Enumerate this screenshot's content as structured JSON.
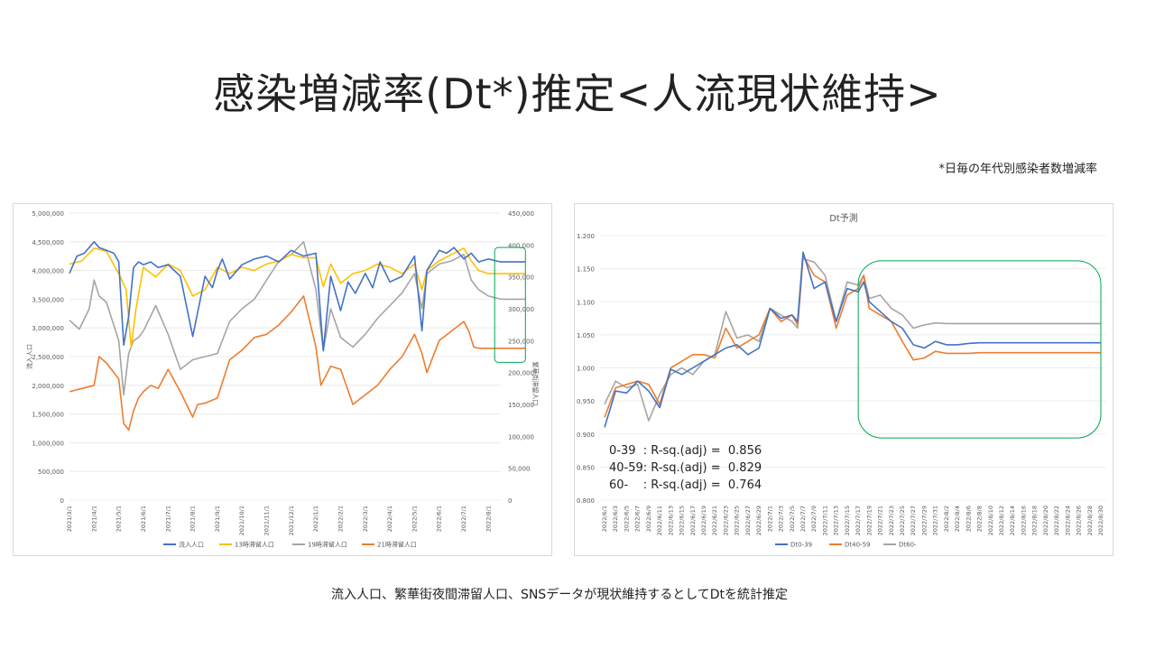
{
  "title": "感染増減率(Dt*)推定<人流現状維持>",
  "note": "*日毎の年代別感染者数増減率",
  "caption": "流入人口、繁華街夜間滞留人口、SNSデータが現状維持するとしてDtを統計推定",
  "colors": {
    "blue": "#4472c4",
    "orange": "#ed7d31",
    "gray": "#a5a5a5",
    "yellow": "#ffc000",
    "green": "#00a651"
  },
  "chart_data": [
    {
      "type": "line",
      "title": "",
      "ylabel": "流入人口",
      "y2label": "繁華街滞留人口",
      "ylim": [
        0,
        5000000
      ],
      "y2lim": [
        0,
        450000
      ],
      "yticks": [
        "0",
        "500,000",
        "1,000,000",
        "1,500,000",
        "2,000,000",
        "2,500,000",
        "3,000,000",
        "3,500,000",
        "4,000,000",
        "4,500,000",
        "5,000,000"
      ],
      "y2ticks": [
        "0",
        "50,000",
        "100,000",
        "150,000",
        "200,000",
        "250,000",
        "300,000",
        "350,000",
        "400,000",
        "450,000"
      ],
      "xticks": [
        "2021/3/1",
        "2021/4/1",
        "2021/5/1",
        "2021/6/1",
        "2021/7/1",
        "2021/8/1",
        "2021/9/1",
        "2021/10/1",
        "2021/11/1",
        "2021/12/1",
        "2022/1/1",
        "2022/2/1",
        "2022/3/1",
        "2022/4/1",
        "2022/5/1",
        "2022/6/1",
        "2022/7/1",
        "2022/8/1"
      ],
      "series": [
        {
          "name": "流入人口",
          "axis": "left",
          "x": [
            0,
            0.3,
            0.6,
            1,
            1.2,
            1.5,
            1.8,
            2,
            2.2,
            2.4,
            2.6,
            2.7,
            2.8,
            3,
            3.3,
            3.6,
            4,
            4.5,
            5,
            5.5,
            5.8,
            6,
            6.2,
            6.5,
            7,
            7.5,
            8,
            8.5,
            9,
            9.5,
            10,
            10.3,
            10.6,
            11,
            11.3,
            11.6,
            12,
            12.3,
            12.6,
            13,
            13.5,
            14,
            14.3,
            14.5,
            15,
            15.3,
            15.6,
            16,
            16.3,
            16.6,
            17,
            17.5,
            18,
            18.5
          ],
          "values": [
            3950000,
            4250000,
            4300000,
            4500000,
            4400000,
            4350000,
            4300000,
            4150000,
            2700000,
            3200000,
            4050000,
            4100000,
            4150000,
            4100000,
            4150000,
            4050000,
            4100000,
            3900000,
            2850000,
            3900000,
            3700000,
            4000000,
            4200000,
            3850000,
            4100000,
            4200000,
            4250000,
            4150000,
            4350000,
            4250000,
            4300000,
            2600000,
            3900000,
            3300000,
            3800000,
            3600000,
            3950000,
            3700000,
            4150000,
            3800000,
            3900000,
            4250000,
            2950000,
            4000000,
            4350000,
            4300000,
            4400000,
            4200000,
            4300000,
            4150000,
            4200000,
            4150000,
            4150000,
            4150000
          ]
        },
        {
          "name": "13時滞留人口",
          "axis": "right",
          "x": [
            0,
            0.5,
            1,
            1.5,
            2,
            2.3,
            2.5,
            2.7,
            3,
            3.5,
            4,
            4.5,
            5,
            5.5,
            6,
            6.5,
            7,
            7.5,
            8,
            8.5,
            9,
            9.5,
            10,
            10.3,
            10.6,
            11,
            11.5,
            12,
            12.5,
            13,
            13.5,
            14,
            14.3,
            14.5,
            15,
            15.5,
            16,
            16.3,
            16.6,
            17,
            17.5,
            18,
            18.5
          ],
          "values": [
            370000,
            375000,
            395000,
            390000,
            355000,
            330000,
            240000,
            300000,
            365000,
            350000,
            370000,
            360000,
            320000,
            330000,
            365000,
            355000,
            365000,
            360000,
            370000,
            375000,
            385000,
            380000,
            380000,
            335000,
            370000,
            340000,
            355000,
            360000,
            370000,
            365000,
            355000,
            370000,
            330000,
            360000,
            375000,
            385000,
            395000,
            375000,
            360000,
            355000,
            355000,
            355000,
            355000
          ]
        },
        {
          "name": "19時滞留人口",
          "axis": "right",
          "x": [
            0,
            0.4,
            0.8,
            1,
            1.2,
            1.5,
            2,
            2.2,
            2.4,
            2.6,
            2.8,
            3,
            3.5,
            4,
            4.5,
            5,
            5.5,
            6,
            6.5,
            7,
            7.5,
            8,
            8.5,
            9,
            9.5,
            10,
            10.3,
            10.6,
            11,
            11.5,
            12,
            12.5,
            13,
            13.5,
            14,
            14.3,
            14.5,
            15,
            15.5,
            16,
            16.3,
            16.6,
            17,
            17.5,
            18,
            18.5
          ],
          "values": [
            282000,
            268000,
            300000,
            345000,
            320000,
            310000,
            250000,
            165000,
            230000,
            250000,
            255000,
            265000,
            305000,
            260000,
            205000,
            220000,
            225000,
            230000,
            280000,
            300000,
            315000,
            345000,
            375000,
            385000,
            405000,
            330000,
            235000,
            300000,
            255000,
            240000,
            260000,
            285000,
            305000,
            325000,
            355000,
            300000,
            355000,
            370000,
            375000,
            385000,
            345000,
            330000,
            320000,
            315000,
            315000,
            315000
          ]
        },
        {
          "name": "21時滞留人口",
          "axis": "right",
          "x": [
            0,
            0.5,
            1,
            1.2,
            1.5,
            2,
            2.2,
            2.4,
            2.6,
            2.8,
            3,
            3.3,
            3.6,
            4,
            4.5,
            5,
            5.2,
            5.5,
            6,
            6.5,
            7,
            7.5,
            8,
            8.5,
            9,
            9.5,
            10,
            10.2,
            10.4,
            10.6,
            11,
            11.5,
            12,
            12.5,
            13,
            13.5,
            14,
            14.3,
            14.5,
            15,
            15.5,
            16,
            16.2,
            16.4,
            16.6,
            17,
            17.5,
            18,
            18.5
          ],
          "values": [
            170000,
            175000,
            180000,
            225000,
            215000,
            190000,
            120000,
            110000,
            140000,
            160000,
            170000,
            180000,
            175000,
            205000,
            170000,
            130000,
            150000,
            152000,
            160000,
            220000,
            235000,
            255000,
            260000,
            275000,
            295000,
            320000,
            240000,
            180000,
            195000,
            210000,
            205000,
            150000,
            165000,
            180000,
            205000,
            225000,
            260000,
            230000,
            200000,
            250000,
            265000,
            280000,
            265000,
            240000,
            238000,
            238000,
            238000,
            238000,
            238000
          ]
        }
      ]
    },
    {
      "type": "line",
      "title": "Dt予測",
      "ylim": [
        0.8,
        1.2
      ],
      "yticks": [
        "0.800",
        "0.850",
        "0.900",
        "0.950",
        "1.000",
        "1.050",
        "1.100",
        "1.150",
        "1.200"
      ],
      "xticks": [
        "2022/6/1",
        "2022/6/3",
        "2022/6/5",
        "2022/6/7",
        "2022/6/9",
        "2022/6/11",
        "2022/6/13",
        "2022/6/15",
        "2022/6/17",
        "2022/6/19",
        "2022/6/21",
        "2022/6/23",
        "2022/6/25",
        "2022/6/27",
        "2022/6/29",
        "2022/7/1",
        "2022/7/3",
        "2022/7/5",
        "2022/7/7",
        "2022/7/9",
        "2022/7/11",
        "2022/7/13",
        "2022/7/15",
        "2022/7/17",
        "2022/7/19",
        "2022/7/21",
        "2022/7/23",
        "2022/7/25",
        "2022/7/27",
        "2022/7/29",
        "2022/7/31",
        "2022/8/2",
        "2022/8/4",
        "2022/8/6",
        "2022/8/8",
        "2022/8/10",
        "2022/8/12",
        "2022/8/14",
        "2022/8/16",
        "2022/8/18",
        "2022/8/20",
        "2022/8/22",
        "2022/8/24",
        "2022/8/26",
        "2022/8/28",
        "2022/8/30"
      ],
      "series": [
        {
          "name": "Dt0-39",
          "x": [
            0,
            2,
            4,
            6,
            8,
            10,
            12,
            14,
            16,
            18,
            20,
            22,
            24,
            26,
            28,
            30,
            32,
            34,
            35,
            36,
            38,
            40,
            42,
            44,
            46,
            47,
            48,
            50,
            52,
            54,
            56,
            58,
            60,
            62,
            64,
            66,
            68,
            70,
            72,
            74,
            76,
            78,
            80,
            82,
            84,
            86,
            88,
            90
          ],
          "values": [
            0.91,
            0.965,
            0.962,
            0.98,
            0.965,
            0.94,
            0.998,
            0.99,
            1.0,
            1.01,
            1.02,
            1.03,
            1.035,
            1.02,
            1.03,
            1.09,
            1.075,
            1.08,
            1.07,
            1.175,
            1.12,
            1.13,
            1.07,
            1.12,
            1.115,
            1.13,
            1.1,
            1.085,
            1.07,
            1.06,
            1.035,
            1.03,
            1.04,
            1.035,
            1.035,
            1.037,
            1.038,
            1.038,
            1.038,
            1.038,
            1.038,
            1.038,
            1.038,
            1.038,
            1.038,
            1.038,
            1.038,
            1.038
          ]
        },
        {
          "name": "Dt40-59",
          "x": [
            0,
            2,
            4,
            6,
            8,
            10,
            12,
            14,
            16,
            18,
            20,
            22,
            24,
            26,
            28,
            30,
            32,
            34,
            35,
            36,
            38,
            40,
            42,
            44,
            46,
            47,
            48,
            50,
            52,
            54,
            56,
            58,
            60,
            62,
            64,
            66,
            68,
            70,
            72,
            74,
            76,
            78,
            80,
            82,
            84,
            86,
            88,
            90
          ],
          "values": [
            0.925,
            0.97,
            0.975,
            0.98,
            0.975,
            0.945,
            1.0,
            1.01,
            1.02,
            1.02,
            1.015,
            1.06,
            1.03,
            1.04,
            1.05,
            1.09,
            1.07,
            1.08,
            1.065,
            1.17,
            1.14,
            1.13,
            1.06,
            1.11,
            1.12,
            1.14,
            1.09,
            1.08,
            1.07,
            1.04,
            1.012,
            1.015,
            1.025,
            1.022,
            1.022,
            1.022,
            1.023,
            1.023,
            1.023,
            1.023,
            1.023,
            1.023,
            1.023,
            1.023,
            1.023,
            1.023,
            1.023,
            1.023
          ]
        },
        {
          "name": "Dt60-",
          "x": [
            0,
            2,
            4,
            6,
            8,
            10,
            12,
            14,
            16,
            18,
            20,
            22,
            24,
            26,
            28,
            30,
            32,
            34,
            35,
            36,
            38,
            40,
            42,
            44,
            46,
            47,
            48,
            50,
            52,
            54,
            56,
            58,
            60,
            62,
            64,
            66,
            68,
            70,
            72,
            74,
            76,
            78,
            80,
            82,
            84,
            86,
            88,
            90
          ],
          "values": [
            0.945,
            0.98,
            0.97,
            0.975,
            0.92,
            0.96,
            0.99,
            1.0,
            0.99,
            1.01,
            1.02,
            1.085,
            1.045,
            1.05,
            1.04,
            1.09,
            1.08,
            1.07,
            1.06,
            1.165,
            1.16,
            1.14,
            1.07,
            1.13,
            1.125,
            1.14,
            1.105,
            1.11,
            1.09,
            1.08,
            1.06,
            1.065,
            1.068,
            1.067,
            1.067,
            1.067,
            1.067,
            1.067,
            1.067,
            1.067,
            1.067,
            1.067,
            1.067,
            1.067,
            1.067,
            1.067,
            1.067,
            1.067
          ]
        }
      ],
      "annotations": [
        "0-39  : R-sq.(adj) =  0.856",
        "40-59: R-sq.(adj) =  0.829",
        "60-    : R-sq.(adj) =  0.764"
      ]
    }
  ]
}
